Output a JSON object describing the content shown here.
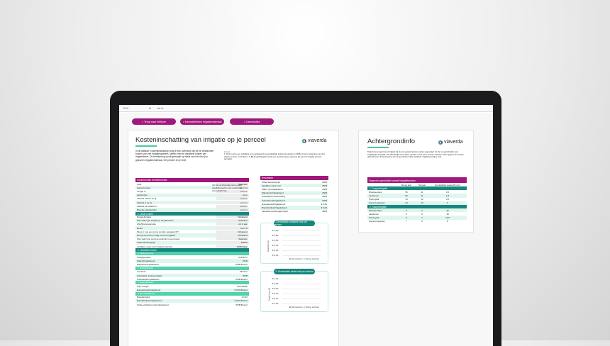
{
  "formula_bar": {
    "cell": "D11",
    "value": "vul in"
  },
  "nav_buttons": [
    "> Terug naar Welkom",
    "> Infomatiefiches irrigatiemateriaal",
    "> Casestudies"
  ],
  "main": {
    "title": "Kosteninschatting van irrigatie op je perceel",
    "logo": "viaverda",
    "intro": "In dit tabblad 'Kosteninschatting' krijg je een overzicht van de te verwachten kosten van een irrigatiesysteem, samen met de variabele kosten per irrigatiebeurt. De berekening wordt gemaakt op basis van het door jou gekozen irrigatiemateriaal, het perceel en je teelt.",
    "note_title": "Let op",
    "note": "1. Deze tool is een schatting en is gebaseerd op gemiddelde prijzen die gelden in 2025. Houd er rekening mee dat prijzen kunnen veranderen. 2. Bij druppelirrigatie wordt een berekening per gewone lijn van het irrigatie perceel gemaakt.",
    "input_header": "Invulformulier teeltinformatie",
    "inputs": [
      [
        "Teelt",
        "Selecteer"
      ],
      [
        "Aantal hectare",
        "vul in ha"
      ],
      [
        "Lengte rij",
        "vul in m"
      ],
      [
        "Aantal rijen",
        "vul in"
      ],
      [
        "Afstand tussen de rij",
        "vul in m"
      ],
      [
        "Afstand in de rij",
        "vul in m"
      ],
      [
        "Afstand tot waterbron",
        "vul in m"
      ],
      [
        "Breedte plantbedden",
        "vul in m"
      ]
    ],
    "input_help": "Vul hier de informatie van je eigen specifieke teelt in. Het model past automatisch aan.",
    "fixed_header": "1. Vaste kosten",
    "fixed": [
      [
        "Druppelirrigatie",
        "Onbekend"
      ],
      [
        "Kies welk type irrigatie je wil gebruiken",
        "Selecteer"
      ],
      [
        "Afschrijvingsperiode",
        "vul in jaar"
      ],
      [
        "Rente",
        "vul in %"
      ],
      [
        "Moet er nog een pomp worden aangekocht?",
        "Onbekend"
      ],
      [
        "Heb je een pomp nodig voor de irrigatie?",
        "Onbekend"
      ],
      [
        "Kies welk type pomp je gebruikt op je perceel",
        "Selecteer"
      ],
      [
        "Totale aankoopprijs",
        "#N/B €"
      ],
      [
        "Jaarlijkse vaste kost irrigatiemateriaal",
        "#N/B €/jaar"
      ]
    ],
    "variable_header": "2. Variabele kosten",
    "variable_sections": [
      {
        "name": "a. Waterverbruik",
        "rows": [
          [
            "Kostprijs water",
            "0,00 €/m³"
          ],
          [
            "Water/irrigatiebeurt",
            "#N/B"
          ],
          [
            "Waterkost/irrigatiebeurt",
            "#N/B €/beurt"
          ]
        ]
      },
      {
        "name": "b. Arbeidskosten",
        "rows": [
          [
            "Loonkost",
            "25 €/uur"
          ],
          [
            "Arbeidstijd: aanleg irrigatie",
            "#N/B"
          ],
          [
            "Arbeidstijd/irrigatiebeurt",
            "#N/B €/beurt"
          ]
        ]
      },
      {
        "name": "c. Energiekosten",
        "rows": [
          [
            "Prijs energie",
            "0,00 €/kWh"
          ],
          [
            "Energiekost/irrigatiebeurt",
            "€ 0,00 €/beurt"
          ]
        ]
      },
      {
        "name": "d. Brandstofkosten",
        "rows": [
          [
            "Brandstofprijs",
            "0,0 €/l"
          ],
          [
            "Brandstofkost/irrigatiebeurt",
            "€ 0,00 €/beurt"
          ],
          [
            "Totale variabele kost/irrigatiebeurt",
            "#N/B €/beurt"
          ]
        ]
      }
    ],
    "results_header": "Resultaten",
    "results": [
      [
        "Totale aankoopprijs",
        "#N/B"
      ],
      [
        "Jaarlijkse vaste kost",
        "#N/B"
      ],
      [
        "Water (l) /irrigatiebeurt",
        "#N/B"
      ],
      [
        "Waterkost/irrigatiebeurt",
        "#N/B"
      ],
      [
        "Arbeidstijd voorbereiding",
        "#N/B"
      ],
      [
        "Arbeidskost/irrigatiebeurt",
        "#N/B"
      ],
      [
        "Energiekost/irrigatiebeurt",
        "€ 0,00"
      ],
      [
        "Brandstofkost/irrigatiebeurt",
        "€ 0,00"
      ],
      [
        "Variabele kost/irrigatie beurt",
        "#N/B"
      ]
    ],
    "charts": [
      {
        "title": "1. Gemiddelde variabele kost per seizoen",
        "ylabel": "Kostprijs (€)",
        "ticks": [
          "€ 1,00",
          "€ 0,80",
          "€ 0,60",
          "€ 0,40",
          "€ 0,20",
          "€ 0,00"
        ],
        "legend": [
          "Nat seizoen",
          "Droog seizoen"
        ]
      },
      {
        "title": "2. Gemiddelde totale kost per seizoen",
        "ylabel": "Totale kost (€)",
        "ticks": [
          "€ 1,00",
          "€ 0,80",
          "€ 0,60",
          "€ 0,40",
          "€ 0,20",
          "€ 0,00"
        ],
        "legend": [
          "Nat seizoen",
          "Droog seizoen"
        ]
      }
    ]
  },
  "background": {
    "title": "Achtergrondinfo",
    "logo": "viaverda",
    "intro": "Tijdens het project werd irrigatie bij de vier geselecteerde teelten opgevolgd. Zo zijn er gemiddelden per irrigatietype bepaald, die afhankelijk van teelten, gewas en het weer kunnen variëren. Deze gegevens worden gebruikt voor de berekening van de geschatte totale variabele irrigatiekost bij je teelt.",
    "table_title": "Gegevens gemiddeld aantal irrigatiebeurten",
    "columns": [
      "",
      "Droog jaar",
      "Nat jaar",
      "Gemiddelde watergift (mm)"
    ],
    "groups": [
      {
        "name": "1. Druppelirrigatie",
        "rows": [
          [
            "Broeipeentjes",
            "56",
            "21",
            "4,5"
          ],
          [
            "Laattomen",
            "56",
            "21",
            "1,8"
          ],
          [
            "Prei/royaal",
            "13",
            "12",
            "4,5"
          ],
          [
            "Zomercourgetten",
            "23",
            "10",
            "5"
          ]
        ]
      },
      {
        "name": "2. Haspelirrigatie",
        "rows": [
          [
            "Broeipeentjes",
            "5",
            "2",
            "40"
          ],
          [
            "Laattomen",
            "6",
            "2",
            "18"
          ],
          [
            "Prei/royaal",
            "5",
            "4",
            "13,5"
          ],
          [
            "Zomercourgetten",
            "7",
            "3",
            "8"
          ]
        ]
      }
    ]
  },
  "colors": {
    "magenta": "#a0187a",
    "teal": "#17877e",
    "mint": "#4fd2ad",
    "row_tint": "#dff6ef"
  }
}
